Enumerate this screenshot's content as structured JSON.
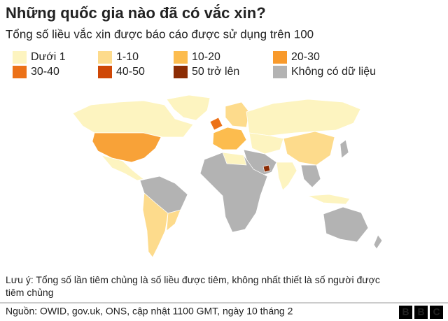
{
  "header": {
    "title": "Những quốc gia nào đã có vắc xin?",
    "subtitle": "Tổng số liều vắc xin được báo cáo được sử dụng trên 100"
  },
  "legend": [
    {
      "label": "Dưới 1",
      "color": "#fdf4c0"
    },
    {
      "label": "1-10",
      "color": "#fddb8c"
    },
    {
      "label": "10-20",
      "color": "#fcbc4e"
    },
    {
      "label": "20-30",
      "color": "#f89a2c"
    },
    {
      "label": "30-40",
      "color": "#ec7118"
    },
    {
      "label": "40-50",
      "color": "#cf4706"
    },
    {
      "label": "50 trở lên",
      "color": "#8c2c04"
    },
    {
      "label": "Không có dữ liệu",
      "color": "#b3b3b3"
    }
  ],
  "note": "Lưu ý: Tổng số lần tiêm chủng là số liều được tiêm, không nhất thiết là số người được tiêm chủng",
  "source": "Nguồn: OWID, gov.uk, ONS, cập nhật 1100 GMT, ngày 10 tháng 2",
  "logo": "BBC"
}
